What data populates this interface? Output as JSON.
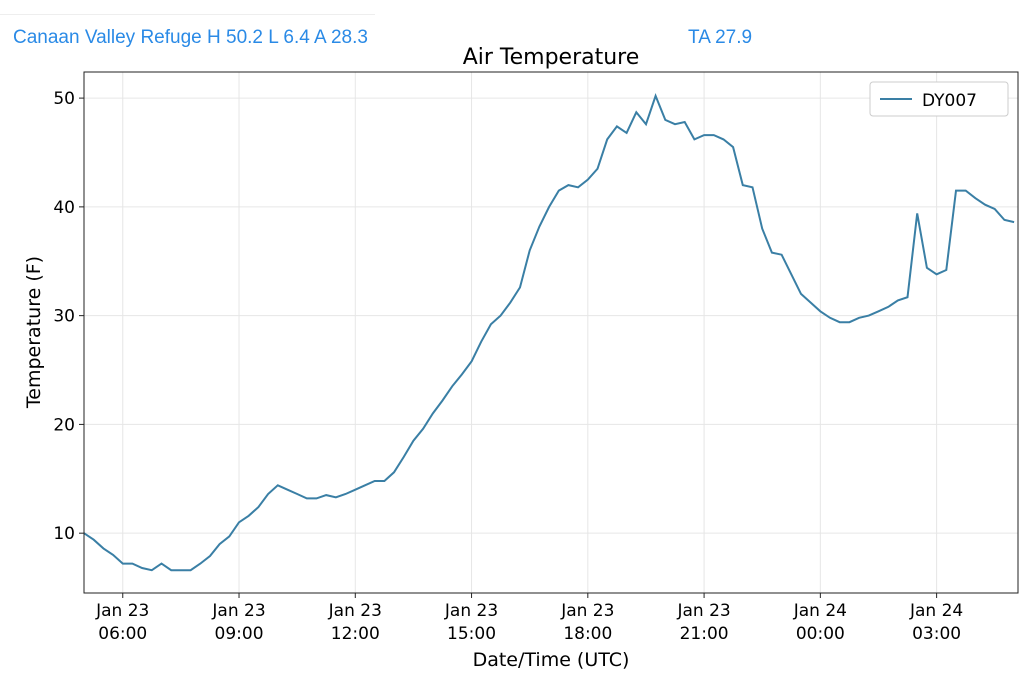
{
  "header": {
    "station_summary": "Canaan Valley Refuge H 50.2 L 6.4 A 28.3",
    "ta": "TA 27.9"
  },
  "chart_data": {
    "type": "line",
    "title": "Air Temperature",
    "xlabel": "Date/Time (UTC)",
    "ylabel": "Temperature (F)",
    "start": "Jan 23 05:00",
    "interval_minutes": 15,
    "xlim_hours": [
      0,
      24.1
    ],
    "ylim": [
      4.5,
      52.4
    ],
    "grid": true,
    "legend_placement": "top-right",
    "yticks": [
      10,
      20,
      30,
      40,
      50
    ],
    "xticks": [
      {
        "hours": 1,
        "date": "Jan 23",
        "time": "06:00"
      },
      {
        "hours": 4,
        "date": "Jan 23",
        "time": "09:00"
      },
      {
        "hours": 7,
        "date": "Jan 23",
        "time": "12:00"
      },
      {
        "hours": 10,
        "date": "Jan 23",
        "time": "15:00"
      },
      {
        "hours": 13,
        "date": "Jan 23",
        "time": "18:00"
      },
      {
        "hours": 16,
        "date": "Jan 23",
        "time": "21:00"
      },
      {
        "hours": 19,
        "date": "Jan 24",
        "time": "00:00"
      },
      {
        "hours": 22,
        "date": "Jan 24",
        "time": "03:00"
      }
    ],
    "series": [
      {
        "name": "DY007",
        "color": "#3a7fa5",
        "values": [
          10,
          9.4,
          8.6,
          8.0,
          7.2,
          7.2,
          6.8,
          6.6,
          7.2,
          6.6,
          6.6,
          6.6,
          7.2,
          7.9,
          9.0,
          9.7,
          11.0,
          11.6,
          12.4,
          13.6,
          14.4,
          14.0,
          13.6,
          13.2,
          13.2,
          13.5,
          13.3,
          13.6,
          14.0,
          14.4,
          14.8,
          14.8,
          15.6,
          17.0,
          18.5,
          19.6,
          21.0,
          22.2,
          23.5,
          24.6,
          25.8,
          27.6,
          29.2,
          30.0,
          31.2,
          32.6,
          36.0,
          38.2,
          40.0,
          41.5,
          42.0,
          41.8,
          42.5,
          43.5,
          46.2,
          47.4,
          46.8,
          48.7,
          47.6,
          50.2,
          48.0,
          47.6,
          47.8,
          46.2,
          46.6,
          46.6,
          46.2,
          45.5,
          42.0,
          41.8,
          38.0,
          35.8,
          35.6,
          33.8,
          32.0,
          31.2,
          30.4,
          29.8,
          29.4,
          29.4,
          29.8,
          30.0,
          30.4,
          30.8,
          31.4,
          31.7,
          39.4,
          34.4,
          33.8,
          34.2,
          41.5,
          41.5,
          40.8,
          40.2,
          39.8,
          38.8,
          38.6
        ]
      }
    ]
  }
}
